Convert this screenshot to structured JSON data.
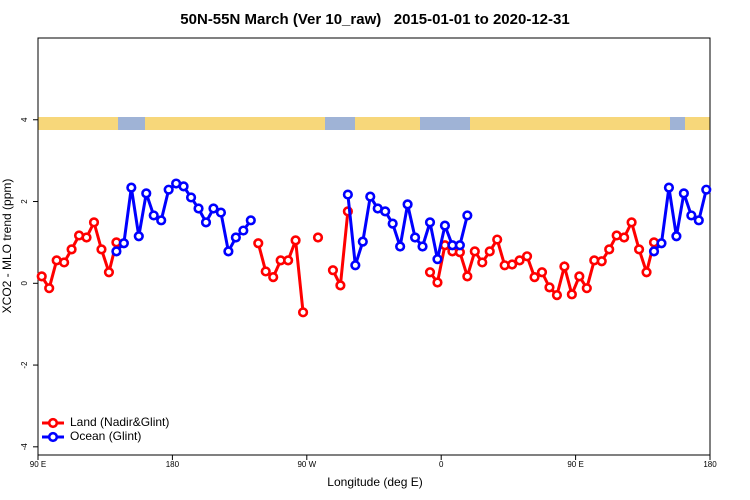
{
  "chart_data": {
    "type": "line",
    "title": "50N-55N March (Ver 10_raw)   2015-01-01 to 2020-12-31",
    "x_label": "Longitude (deg E)",
    "y_label": "XCO2 - MLO trend (ppm)",
    "x": [
      92.5,
      97.5,
      102.5,
      107.5,
      112.5,
      117.5,
      122.5,
      127.5,
      132.5,
      137.5,
      142.5,
      147.5,
      152.5,
      157.5,
      162.5,
      167.5,
      172.5,
      177.5,
      182.5,
      187.5,
      192.5,
      197.5,
      202.5,
      207.5,
      212.5,
      217.5,
      222.5,
      227.5,
      232.5,
      237.5,
      242.5,
      247.5,
      252.5,
      257.5,
      262.5,
      267.5,
      272.5,
      277.5,
      282.5,
      287.5,
      292.5,
      297.5,
      302.5,
      307.5,
      312.5,
      317.5,
      322.5,
      327.5,
      332.5,
      337.5,
      342.5,
      347.5,
      352.5,
      357.5,
      362.5,
      367.5,
      372.5,
      377.5,
      382.5,
      387.5,
      392.5,
      397.5,
      402.5,
      407.5,
      412.5,
      417.5,
      422.5,
      427.5,
      432.5,
      437.5,
      442.5,
      447.5,
      452.5,
      457.5,
      462.5,
      467.5,
      472.5,
      477.5,
      482.5,
      487.5,
      492.5,
      497.5,
      502.5,
      507.5,
      512.5,
      517.5,
      522.5,
      527.5,
      532.5,
      537.5
    ],
    "series": [
      {
        "name": "Land (Nadir&Glint)",
        "color": "#ff0000",
        "values": [
          0.17,
          -0.12,
          0.56,
          0.51,
          0.83,
          1.17,
          1.12,
          1.49,
          0.83,
          0.27,
          1.0,
          null,
          null,
          null,
          null,
          null,
          null,
          null,
          null,
          null,
          null,
          null,
          null,
          null,
          null,
          null,
          null,
          null,
          null,
          0.98,
          0.29,
          0.15,
          0.56,
          0.56,
          1.05,
          -0.71,
          null,
          1.12,
          null,
          0.32,
          -0.05,
          1.76,
          null,
          null,
          null,
          null,
          null,
          null,
          null,
          null,
          null,
          null,
          0.27,
          0.02,
          0.93,
          0.78,
          0.76,
          0.17,
          0.78,
          0.51,
          0.78,
          1.07,
          0.44,
          0.46,
          0.56,
          0.66,
          0.15,
          0.27,
          -0.1,
          -0.29,
          0.41,
          -0.27,
          0.17,
          -0.12,
          0.56,
          0.54,
          0.83,
          1.17,
          1.12,
          1.49,
          0.83,
          0.27,
          1.0,
          null,
          null,
          null,
          null,
          null,
          null,
          null
        ]
      },
      {
        "name": "Ocean (Glint)",
        "color": "#0000ff",
        "values": [
          null,
          null,
          null,
          null,
          null,
          null,
          null,
          null,
          null,
          null,
          0.78,
          0.98,
          2.34,
          1.15,
          2.2,
          1.66,
          1.54,
          2.29,
          2.44,
          2.37,
          2.1,
          1.83,
          1.49,
          1.83,
          1.73,
          0.78,
          1.12,
          1.29,
          1.54,
          null,
          null,
          null,
          null,
          null,
          null,
          null,
          null,
          null,
          null,
          null,
          null,
          2.17,
          0.44,
          1.02,
          2.12,
          1.83,
          1.76,
          1.46,
          0.9,
          1.93,
          1.12,
          0.9,
          1.49,
          0.59,
          1.41,
          0.93,
          0.93,
          1.66,
          null,
          null,
          null,
          null,
          null,
          null,
          null,
          null,
          null,
          null,
          null,
          null,
          null,
          null,
          null,
          null,
          null,
          null,
          null,
          null,
          null,
          null,
          null,
          null,
          0.78,
          0.98,
          2.34,
          1.15,
          2.2,
          1.66,
          1.54,
          2.29
        ]
      }
    ],
    "xlim": [
      90,
      540
    ],
    "xticks": [
      {
        "value": 90,
        "label": "90 E"
      },
      180,
      {
        "value": 270,
        "label": "90 W"
      },
      {
        "value": 360,
        "label": "0"
      },
      {
        "value": 450,
        "label": "90 E"
      },
      {
        "value": 540,
        "label": "180"
      }
    ],
    "ylim": [
      -4.2,
      6
    ],
    "yticks": [
      -4,
      -2,
      0,
      2,
      4
    ],
    "grid": false,
    "legend": "bottom-left"
  }
}
